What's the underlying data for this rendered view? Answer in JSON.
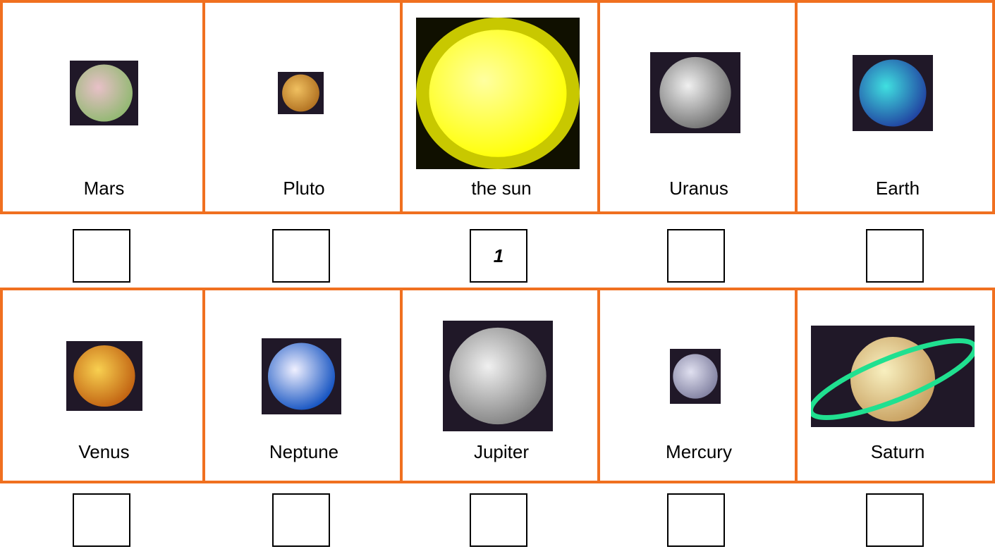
{
  "rows": [
    {
      "cells": [
        {
          "label": "Mars"
        },
        {
          "label": "Pluto"
        },
        {
          "label": "the sun",
          "answer": "1"
        },
        {
          "label": "Uranus"
        },
        {
          "label": "Earth"
        }
      ]
    },
    {
      "cells": [
        {
          "label": "Venus"
        },
        {
          "label": "Neptune"
        },
        {
          "label": "Jupiter"
        },
        {
          "label": "Mercury"
        },
        {
          "label": "Saturn"
        }
      ]
    }
  ]
}
